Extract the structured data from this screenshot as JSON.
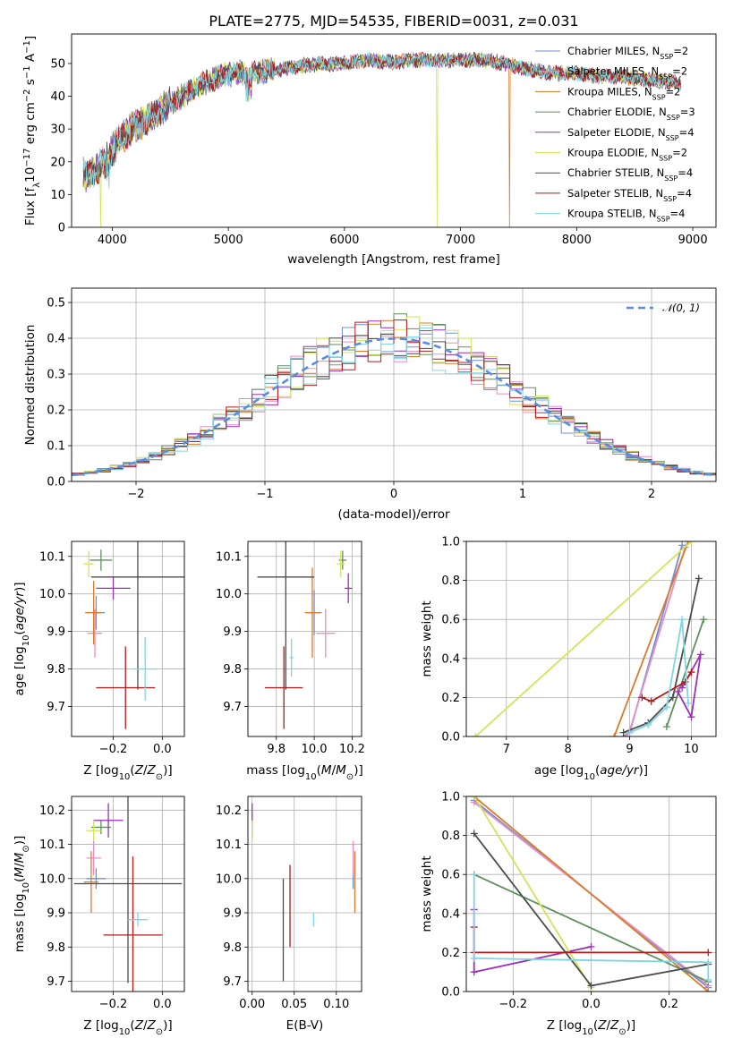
{
  "figure_title": "PLATE=2775, MJD=54535, FIBERID=0031, z=0.031",
  "palette": {
    "Chabrier MILES": "#6b8fd6",
    "Salpeter MILES": "#e58fc4",
    "Kroupa MILES": "#d97c2b",
    "Chabrier ELODIE": "#5f8f5f",
    "Salpeter ELODIE": "#9a2fb8",
    "Kroupa ELODIE": "#d4e35a",
    "Chabrier STELIB": "#4d4d4d",
    "Salpeter STELIB": "#b01c1c",
    "Kroupa STELIB": "#7fd6e0"
  },
  "chart_data": [
    {
      "id": "spectrum",
      "type": "line",
      "title": "PLATE=2775, MJD=54535, FIBERID=0031, z=0.031",
      "xlabel": "wavelength [Angstrom, rest frame]",
      "ylabel": "Flux [fλ10⁻¹⁷ erg cm⁻² s⁻¹ A⁻¹]",
      "xlim": [
        3650,
        9200
      ],
      "ylim": [
        0,
        59
      ],
      "xticks": [
        4000,
        5000,
        6000,
        7000,
        8000,
        9000
      ],
      "yticks": [
        0,
        10,
        20,
        30,
        40,
        50
      ],
      "grid": false,
      "legend_position": "top-right",
      "continuum": [
        [
          3750,
          16
        ],
        [
          3850,
          17
        ],
        [
          3950,
          21
        ],
        [
          4050,
          26
        ],
        [
          4150,
          30
        ],
        [
          4250,
          32
        ],
        [
          4350,
          34
        ],
        [
          4450,
          37
        ],
        [
          4600,
          40
        ],
        [
          4750,
          43
        ],
        [
          4850,
          45
        ],
        [
          5000,
          47
        ],
        [
          5200,
          47
        ],
        [
          5400,
          48
        ],
        [
          5600,
          49
        ],
        [
          5800,
          50
        ],
        [
          6000,
          50
        ],
        [
          6200,
          51
        ],
        [
          6400,
          50.5
        ],
        [
          6600,
          51
        ],
        [
          6800,
          51
        ],
        [
          7000,
          51
        ],
        [
          7200,
          51
        ],
        [
          7400,
          50
        ],
        [
          7600,
          48
        ],
        [
          7800,
          47
        ],
        [
          8000,
          47
        ],
        [
          8200,
          46
        ],
        [
          8400,
          46
        ],
        [
          8600,
          45
        ],
        [
          8900,
          44
        ]
      ],
      "series": [
        {
          "name": "Chabrier MILES, N_SSP=2",
          "library": "Chabrier MILES"
        },
        {
          "name": "Salpeter MILES, N_SSP=2",
          "library": "Salpeter MILES"
        },
        {
          "name": "Kroupa MILES, N_SSP=2",
          "library": "Kroupa MILES"
        },
        {
          "name": "Chabrier ELODIE, N_SSP=3",
          "library": "Chabrier ELODIE"
        },
        {
          "name": "Salpeter ELODIE, N_SSP=4",
          "library": "Salpeter ELODIE"
        },
        {
          "name": "Kroupa ELODIE, N_SSP=2",
          "library": "Kroupa ELODIE"
        },
        {
          "name": "Chabrier STELIB, N_SSP=4",
          "library": "Chabrier STELIB"
        },
        {
          "name": "Salpeter STELIB, N_SSP=4",
          "library": "Salpeter STELIB"
        },
        {
          "name": "Kroupa STELIB, N_SSP=4",
          "library": "Kroupa STELIB"
        }
      ],
      "legend_text": [
        {
          "pre": "Chabrier MILES, N",
          "sub": "SSP",
          "post": "=2"
        },
        {
          "pre": "Salpeter MILES, N",
          "sub": "SSP",
          "post": "=2"
        },
        {
          "pre": "Kroupa MILES, N",
          "sub": "SSP",
          "post": "=2"
        },
        {
          "pre": "Chabrier ELODIE, N",
          "sub": "SSP",
          "post": "=3"
        },
        {
          "pre": "Salpeter ELODIE, N",
          "sub": "SSP",
          "post": "=4"
        },
        {
          "pre": "Kroupa ELODIE, N",
          "sub": "SSP",
          "post": "=2"
        },
        {
          "pre": "Chabrier STELIB, N",
          "sub": "SSP",
          "post": "=4"
        },
        {
          "pre": "Salpeter STELIB, N",
          "sub": "SSP",
          "post": "=4"
        },
        {
          "pre": "Kroupa STELIB, N",
          "sub": "SSP",
          "post": "=4"
        }
      ],
      "drops_to_zero": [
        {
          "library": "Kroupa ELODIE",
          "x": 3900
        },
        {
          "library": "Kroupa ELODIE",
          "x": 6800
        },
        {
          "library": "Kroupa MILES",
          "x": 7420
        }
      ]
    },
    {
      "id": "residuals",
      "type": "histogram",
      "xlabel": "(data-model)/error",
      "ylabel": "Normed distribution",
      "xlim": [
        -2.5,
        2.5
      ],
      "ylim": [
        0,
        0.54
      ],
      "xticks": [
        -2,
        -1,
        0,
        1,
        2
      ],
      "yticks": [
        0.0,
        0.1,
        0.2,
        0.3,
        0.4,
        0.5
      ],
      "grid": true,
      "legend_position": "top-right",
      "reference_curve": {
        "name": "𝒩(0, 1)",
        "mean": 0,
        "sigma": 1
      },
      "bin_width": 0.1
    },
    {
      "id": "age-vs-Z",
      "type": "errorbar",
      "xlabel": "Z [log₁₀(Z/Z⊙)]",
      "ylabel": "age  [log₁₀(age/yr)]",
      "xlim": [
        -0.37,
        0.09
      ],
      "ylim": [
        9.62,
        10.14
      ],
      "xticks": [
        -0.2,
        0.0
      ],
      "yticks": [
        9.7,
        9.8,
        9.9,
        10.0,
        10.1
      ],
      "grid": true,
      "points": [
        {
          "library": "Chabrier MILES",
          "x": -0.27,
          "y": 9.95,
          "xerr": 0.035,
          "yerr": 0.045
        },
        {
          "library": "Salpeter MILES",
          "x": -0.275,
          "y": 9.895,
          "xerr": 0.03,
          "yerr": 0.065
        },
        {
          "library": "Kroupa MILES",
          "x": -0.28,
          "y": 9.95,
          "xerr": 0.035,
          "yerr": 0.085
        },
        {
          "library": "Chabrier ELODIE",
          "x": -0.25,
          "y": 10.09,
          "xerr": 0.045,
          "yerr": 0.028
        },
        {
          "library": "Salpeter ELODIE",
          "x": -0.2,
          "y": 10.015,
          "xerr": 0.07,
          "yerr": 0.03
        },
        {
          "library": "Kroupa ELODIE",
          "x": -0.3,
          "y": 10.08,
          "xerr": 0.02,
          "yerr": 0.035
        },
        {
          "library": "Chabrier STELIB",
          "x": -0.1,
          "y": 10.045,
          "xerr": 0.19,
          "yerr": 0.3
        },
        {
          "library": "Salpeter STELIB",
          "x": -0.15,
          "y": 9.75,
          "xerr": 0.12,
          "yerr": 0.11
        },
        {
          "library": "Kroupa STELIB",
          "x": -0.07,
          "y": 9.8,
          "xerr": 0.05,
          "yerr": 0.085
        }
      ]
    },
    {
      "id": "age-vs-mass",
      "type": "errorbar",
      "xlabel": "mass [log₁₀(M/M⊙)]",
      "ylabel": "",
      "xlim": [
        9.65,
        10.25
      ],
      "ylim": [
        9.62,
        10.14
      ],
      "xticks": [
        9.8,
        10.0,
        10.2
      ],
      "yticks": [
        9.7,
        9.8,
        9.9,
        10.0,
        10.1
      ],
      "grid": true,
      "points": [
        {
          "library": "Chabrier MILES",
          "x": 10.0,
          "y": 9.95,
          "xerr": 0.04,
          "yerr": 0.06
        },
        {
          "library": "Salpeter MILES",
          "x": 10.06,
          "y": 9.895,
          "xerr": 0.05,
          "yerr": 0.065
        },
        {
          "library": "Kroupa MILES",
          "x": 9.99,
          "y": 9.95,
          "xerr": 0.04,
          "yerr": 0.12
        },
        {
          "library": "Chabrier ELODIE",
          "x": 10.15,
          "y": 10.09,
          "xerr": 0.02,
          "yerr": 0.025
        },
        {
          "library": "Salpeter ELODIE",
          "x": 10.18,
          "y": 10.015,
          "xerr": 0.02,
          "yerr": 0.04
        },
        {
          "library": "Kroupa ELODIE",
          "x": 10.14,
          "y": 10.08,
          "xerr": 0.02,
          "yerr": 0.035
        },
        {
          "library": "Chabrier STELIB",
          "x": 9.85,
          "y": 10.045,
          "xerr": 0.15,
          "yerr": 0.3
        },
        {
          "library": "Salpeter STELIB",
          "x": 9.84,
          "y": 9.75,
          "xerr": 0.1,
          "yerr": 0.11
        },
        {
          "library": "Kroupa STELIB",
          "x": 9.88,
          "y": 9.83,
          "xerr": 0.01,
          "yerr": 0.05
        }
      ]
    },
    {
      "id": "massweight-vs-age",
      "type": "line",
      "xlabel": "age  [log₁₀(age/yr)]",
      "ylabel": "mass weight",
      "xlim": [
        6.35,
        10.4
      ],
      "ylim": [
        0,
        1
      ],
      "xticks": [
        7,
        8,
        9,
        10
      ],
      "yticks": [
        0.0,
        0.2,
        0.4,
        0.6,
        0.8,
        1.0
      ],
      "grid": true,
      "series": [
        {
          "library": "Chabrier MILES",
          "points": [
            [
              8.9,
              0.0
            ],
            [
              9.0,
              0.02
            ],
            [
              9.85,
              0.98
            ]
          ]
        },
        {
          "library": "Salpeter MILES",
          "points": [
            [
              8.95,
              0.0
            ],
            [
              9.0,
              0.03
            ],
            [
              9.9,
              0.97
            ]
          ]
        },
        {
          "library": "Kroupa MILES",
          "points": [
            [
              8.75,
              0.0
            ],
            [
              9.95,
              1.0
            ]
          ]
        },
        {
          "library": "Chabrier ELODIE",
          "points": [
            [
              9.6,
              0.05
            ],
            [
              10.2,
              0.6
            ]
          ]
        },
        {
          "library": "Salpeter ELODIE",
          "points": [
            [
              9.78,
              0.23
            ],
            [
              10.0,
              0.1
            ],
            [
              10.15,
              0.42
            ],
            [
              9.85,
              0.25
            ]
          ]
        },
        {
          "library": "Kroupa ELODIE",
          "points": [
            [
              6.5,
              0.0
            ],
            [
              10.0,
              1.0
            ]
          ]
        },
        {
          "library": "Chabrier STELIB",
          "points": [
            [
              8.9,
              0.02
            ],
            [
              9.3,
              0.07
            ],
            [
              9.7,
              0.2
            ],
            [
              10.12,
              0.81
            ]
          ]
        },
        {
          "library": "Salpeter STELIB",
          "points": [
            [
              9.2,
              0.2
            ],
            [
              9.35,
              0.18
            ],
            [
              9.9,
              0.28
            ],
            [
              10.0,
              0.33
            ]
          ]
        },
        {
          "library": "Kroupa STELIB",
          "points": [
            [
              9.0,
              0.02
            ],
            [
              9.3,
              0.06
            ],
            [
              9.6,
              0.15
            ],
            [
              9.85,
              0.6
            ],
            [
              9.95,
              0.17
            ]
          ]
        }
      ]
    },
    {
      "id": "mass-vs-Z",
      "type": "errorbar",
      "xlabel": "Z [log₁₀(Z/Z⊙)]",
      "ylabel": "mass [log₁₀(M/M⊙)]",
      "xlim": [
        -0.37,
        0.09
      ],
      "ylim": [
        9.67,
        10.24
      ],
      "xticks": [
        -0.2,
        0.0
      ],
      "yticks": [
        9.7,
        9.8,
        9.9,
        10.0,
        10.1,
        10.2
      ],
      "grid": true,
      "points": [
        {
          "library": "Chabrier MILES",
          "x": -0.27,
          "y": 10.0,
          "xerr": 0.04,
          "yerr": 0.03
        },
        {
          "library": "Salpeter MILES",
          "x": -0.28,
          "y": 10.06,
          "xerr": 0.03,
          "yerr": 0.05
        },
        {
          "library": "Kroupa MILES",
          "x": -0.29,
          "y": 9.99,
          "xerr": 0.03,
          "yerr": 0.09
        },
        {
          "library": "Chabrier ELODIE",
          "x": -0.25,
          "y": 10.15,
          "xerr": 0.04,
          "yerr": 0.02
        },
        {
          "library": "Salpeter ELODIE",
          "x": -0.22,
          "y": 10.17,
          "xerr": 0.06,
          "yerr": 0.05
        },
        {
          "library": "Kroupa ELODIE",
          "x": -0.28,
          "y": 10.14,
          "xerr": 0.03,
          "yerr": 0.03
        },
        {
          "library": "Chabrier STELIB",
          "x": -0.14,
          "y": 9.985,
          "xerr": 0.22,
          "yerr": 0.29
        },
        {
          "library": "Salpeter STELIB",
          "x": -0.12,
          "y": 9.835,
          "xerr": 0.12,
          "yerr": 0.23
        },
        {
          "library": "Kroupa STELIB",
          "x": -0.1,
          "y": 9.88,
          "xerr": 0.04,
          "yerr": 0.02
        }
      ]
    },
    {
      "id": "mass-vs-EBV",
      "type": "errorbar",
      "xlabel": "E(B-V)",
      "ylabel": "",
      "xlim": [
        -0.005,
        0.13
      ],
      "ylim": [
        9.67,
        10.24
      ],
      "xticks": [
        0.0,
        0.05,
        0.1
      ],
      "xticklabels": [
        "0.00",
        "0.05",
        "0.10"
      ],
      "yticks": [
        9.7,
        9.8,
        9.9,
        10.0,
        10.1,
        10.2
      ],
      "grid": true,
      "points": [
        {
          "library": "Chabrier MILES",
          "x": 0.12,
          "y": 10.0,
          "xerr": 0,
          "yerr": 0.03
        },
        {
          "library": "Salpeter MILES",
          "x": 0.12,
          "y": 10.06,
          "xerr": 0,
          "yerr": 0.05
        },
        {
          "library": "Kroupa MILES",
          "x": 0.122,
          "y": 9.99,
          "xerr": 0,
          "yerr": 0.09
        },
        {
          "library": "Chabrier ELODIE",
          "x": 0.0,
          "y": 10.15,
          "xerr": 0,
          "yerr": 0.02
        },
        {
          "library": "Salpeter ELODIE",
          "x": 0.0,
          "y": 10.17,
          "xerr": 0,
          "yerr": 0.05
        },
        {
          "library": "Kroupa ELODIE",
          "x": 0.0,
          "y": 10.14,
          "xerr": 0,
          "yerr": 0.03
        },
        {
          "library": "Chabrier STELIB",
          "x": 0.037,
          "y": 9.85,
          "xerr": 0,
          "yerr": 0.15
        },
        {
          "library": "Salpeter STELIB",
          "x": 0.045,
          "y": 9.92,
          "xerr": 0,
          "yerr": 0.12
        },
        {
          "library": "Kroupa STELIB",
          "x": 0.073,
          "y": 9.88,
          "xerr": 0,
          "yerr": 0.02
        }
      ]
    },
    {
      "id": "massweight-vs-Z",
      "type": "line",
      "xlabel": "Z [log₁₀(Z/Z⊙)]",
      "ylabel": "mass weight",
      "xlim": [
        -0.32,
        0.32
      ],
      "ylim": [
        0,
        1
      ],
      "xticks": [
        -0.2,
        0.0,
        0.2
      ],
      "yticks": [
        0.0,
        0.2,
        0.4,
        0.6,
        0.8,
        1.0
      ],
      "grid": true,
      "series": [
        {
          "library": "Chabrier MILES",
          "points": [
            [
              -0.3,
              0.98
            ],
            [
              0.3,
              0.02
            ]
          ]
        },
        {
          "library": "Salpeter MILES",
          "points": [
            [
              -0.3,
              0.97
            ],
            [
              0.3,
              0.03
            ]
          ]
        },
        {
          "library": "Kroupa MILES",
          "points": [
            [
              -0.3,
              1.0
            ],
            [
              0.3,
              0.0
            ]
          ]
        },
        {
          "library": "Chabrier ELODIE",
          "points": [
            [
              -0.3,
              0.6
            ],
            [
              0.3,
              0.05
            ]
          ]
        },
        {
          "library": "Salpeter ELODIE",
          "points": [
            [
              -0.3,
              0.42
            ],
            [
              -0.3,
              0.1
            ],
            [
              0.0,
              0.23
            ]
          ]
        },
        {
          "library": "Kroupa ELODIE",
          "points": [
            [
              -0.3,
              1.0
            ],
            [
              0.0,
              0.02
            ]
          ]
        },
        {
          "library": "Chabrier STELIB",
          "points": [
            [
              -0.3,
              0.81
            ],
            [
              0.0,
              0.03
            ],
            [
              0.3,
              0.14
            ]
          ]
        },
        {
          "library": "Salpeter STELIB",
          "points": [
            [
              -0.3,
              0.33
            ],
            [
              -0.3,
              0.2
            ],
            [
              0.3,
              0.2
            ]
          ]
        },
        {
          "library": "Kroupa STELIB",
          "points": [
            [
              -0.3,
              0.6
            ],
            [
              -0.3,
              0.17
            ],
            [
              0.3,
              0.15
            ],
            [
              0.3,
              0.06
            ]
          ]
        }
      ]
    }
  ]
}
